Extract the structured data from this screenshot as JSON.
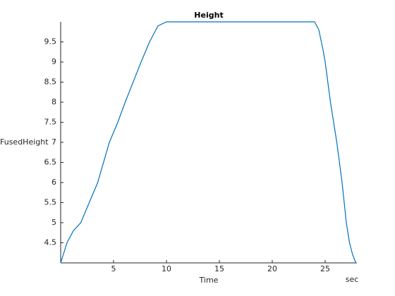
{
  "chart_data": {
    "type": "line",
    "title": "Height",
    "x_label": "Time",
    "y_label": "FusedHeight",
    "x_unit": "sec",
    "x": [
      0,
      0.6,
      1.2,
      1.9,
      2.7,
      3.5,
      4.6,
      5.4,
      6.1,
      7.0,
      7.6,
      8.4,
      9.2,
      10,
      24,
      24.4,
      24.8,
      25.0,
      25.5,
      26.1,
      26.6,
      27.0,
      27.3,
      27.6,
      27.9
    ],
    "series": [
      {
        "color": "#0072bd",
        "values": [
          4,
          4.5,
          4.8,
          5,
          5.5,
          6,
          7,
          7.5,
          8,
          8.6,
          9,
          9.5,
          9.9,
          10,
          10,
          9.8,
          9.3,
          9,
          8,
          7,
          6,
          5,
          4.5,
          4.2,
          4
        ]
      }
    ],
    "xlim": [
      0,
      28
    ],
    "xticks": [
      5,
      10,
      15,
      20,
      25
    ],
    "ylim": [
      4,
      10
    ],
    "yticks": [
      4.5,
      5,
      5.5,
      6,
      6.5,
      7,
      7.5,
      8,
      8.5,
      9,
      9.5
    ]
  }
}
